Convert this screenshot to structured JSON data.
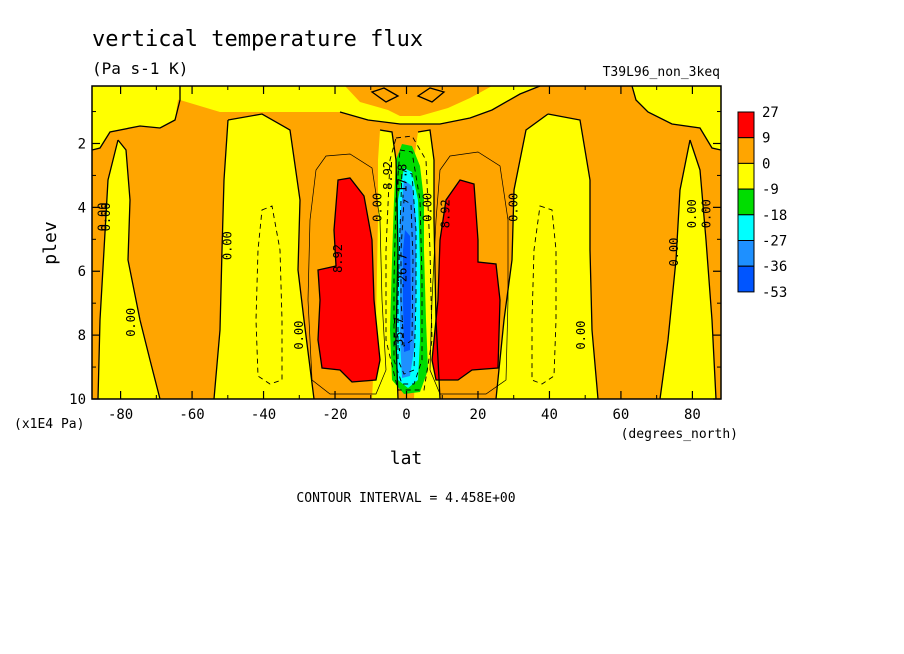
{
  "chart_data": {
    "type": "heatmap",
    "title": "vertical temperature flux",
    "subtitle": "(Pa s-1 K)",
    "run_label": "T39L96_non_3keq",
    "xlabel": "lat",
    "x_units": "(degrees_north)",
    "ylabel": "plev",
    "y_units": "(x1E4 Pa)",
    "xlim": [
      -88,
      88
    ],
    "ylim": [
      10,
      0.2
    ],
    "x_ticks": [
      -80,
      -60,
      -40,
      -20,
      0,
      20,
      40,
      60,
      80
    ],
    "x_tick_labels": [
      "-80",
      "-60",
      "-40",
      "-20",
      "0",
      "20",
      "40",
      "60",
      "80"
    ],
    "y_ticks": [
      2,
      4,
      6,
      8,
      10
    ],
    "y_tick_labels": [
      "2",
      "4",
      "6",
      "8",
      "10"
    ],
    "legend": {
      "placement": "right",
      "levels": [
        "27",
        "9",
        "0",
        "-9",
        "-18",
        "-27",
        "-36",
        "-53"
      ],
      "colors": [
        "#ff0000",
        "#ffa500",
        "#ffff00",
        "#00dd00",
        "#00ffff",
        "#1e90ff",
        "#0055ff"
      ]
    },
    "contour_labels": [
      {
        "text": "0.00",
        "x": -84,
        "y": 4.3
      },
      {
        "text": "0.00",
        "x": -83,
        "y": 4.3
      },
      {
        "text": "0.00",
        "x": -76,
        "y": 7.6
      },
      {
        "text": "0.00",
        "x": -49,
        "y": 5.2
      },
      {
        "text": "0.00",
        "x": -29,
        "y": 8.0
      },
      {
        "text": "8.92",
        "x": -18,
        "y": 5.6
      },
      {
        "text": "0.00",
        "x": -7,
        "y": 4.0
      },
      {
        "text": "8.92",
        "x": -4,
        "y": 3.0
      },
      {
        "text": "-17.8",
        "x": 0,
        "y": 3.2
      },
      {
        "text": "-26.7",
        "x": 0,
        "y": 6.0
      },
      {
        "text": "-35.7",
        "x": -1,
        "y": 8.0
      },
      {
        "text": "0.00",
        "x": 7,
        "y": 4.0
      },
      {
        "text": "8.92",
        "x": 12,
        "y": 4.2
      },
      {
        "text": "0.00",
        "x": 31,
        "y": 4.0
      },
      {
        "text": "0.00",
        "x": 50,
        "y": 8.0
      },
      {
        "text": "0.00",
        "x": 76,
        "y": 5.4
      },
      {
        "text": "0.00",
        "x": 81,
        "y": 4.2
      },
      {
        "text": "0.00",
        "x": 85,
        "y": 4.2
      }
    ],
    "footer": "CONTOUR INTERVAL = 4.458E+00"
  }
}
